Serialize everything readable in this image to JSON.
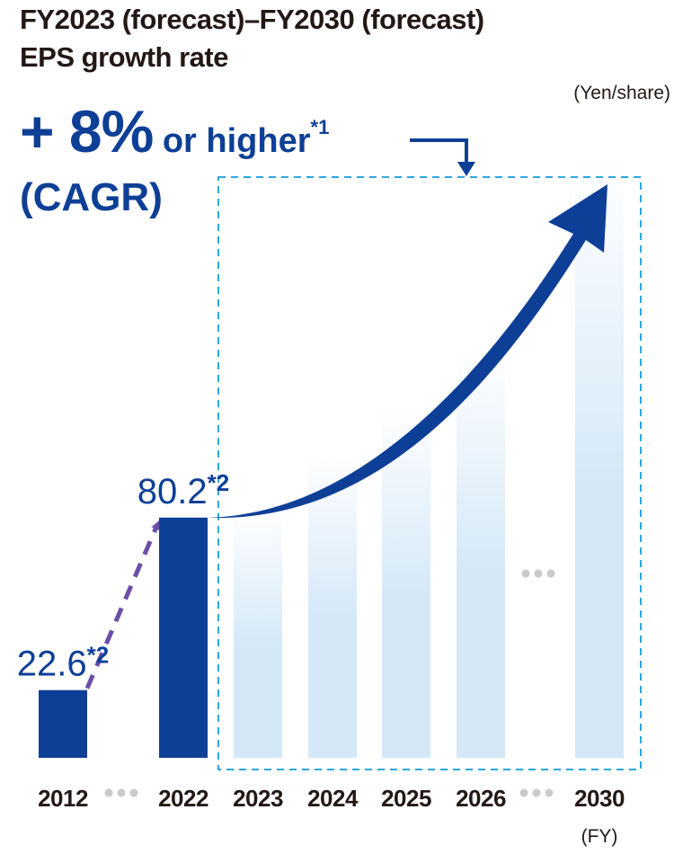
{
  "title_line1": "FY2023 (forecast)–FY2030 (forecast)",
  "title_line2": "EPS growth rate",
  "unit_label": "(Yen/share)",
  "cagr_value": "+ 8%",
  "cagr_text": " or higher",
  "cagr_note": "*1",
  "cagr_label": "(CAGR)",
  "colors": {
    "actual_bar": "#0e3f96",
    "forecast_bar_top": "#ffffff",
    "forecast_bar_bottom": "#d4e8f8",
    "dashed_box": "#2ea7e0",
    "dashed_arrow": "#6b4fa6",
    "growth_arrow": "#0e3f96",
    "ellipsis_dots": "#c9cacb",
    "text": "#231815"
  },
  "chart_data": {
    "type": "bar",
    "unit": "(Yen/share)",
    "xlabel": "(FY)",
    "categories": [
      "2012",
      "2022",
      "2023",
      "2024",
      "2025",
      "2026",
      "2030"
    ],
    "gaps_after": [
      "2012",
      "2026"
    ],
    "ylim": [
      0,
      250
    ],
    "series": [
      {
        "kind": "actual",
        "values": [
          22.6,
          80.2,
          null,
          null,
          null,
          null,
          null
        ],
        "data_labels": [
          "22.6",
          "80.2",
          null,
          null,
          null,
          null,
          null
        ],
        "label_notes": [
          "*2",
          "*2",
          null,
          null,
          null,
          null,
          null
        ]
      },
      {
        "kind": "forecast",
        "values": [
          null,
          null,
          83,
          102,
          118,
          137,
          200
        ]
      }
    ],
    "annotations": [
      "+ 8% or higher*1 (CAGR)"
    ]
  }
}
